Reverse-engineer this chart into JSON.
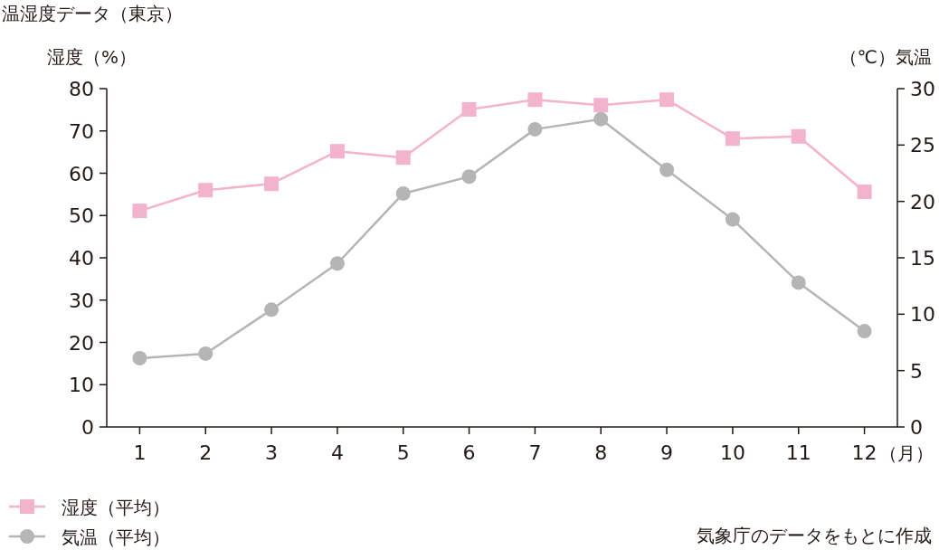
{
  "chart_data": {
    "type": "line",
    "title": "温湿度データ（東京）",
    "ylabel": "湿度（%）",
    "y2label": "（℃）気温",
    "xlabel": "（月）",
    "categories": [
      "1",
      "2",
      "3",
      "4",
      "5",
      "6",
      "7",
      "8",
      "9",
      "10",
      "11",
      "12"
    ],
    "series": [
      {
        "name": "湿度（平均）",
        "color": "#f4b3cc",
        "marker": "square",
        "values": [
          51.1,
          56.0,
          57.5,
          65.2,
          63.7,
          75.1,
          77.4,
          76.1,
          77.4,
          68.2,
          68.7,
          55.6
        ]
      },
      {
        "name": "気温（平均）",
        "color": "#b5b5b5",
        "marker": "circle",
        "axis": "y2",
        "values": [
          6.1,
          6.5,
          10.4,
          14.5,
          20.7,
          22.2,
          26.4,
          27.3,
          22.8,
          18.4,
          12.8,
          8.5
        ]
      }
    ],
    "ylim": [
      0,
      80
    ],
    "yticks": [
      0,
      10,
      20,
      30,
      40,
      50,
      60,
      70,
      80
    ],
    "y2lim": [
      0,
      30
    ],
    "y2ticks": [
      0,
      5,
      10,
      15,
      20,
      25,
      30
    ],
    "grid": false,
    "legend": "bottom left",
    "annotations": [
      "気象庁のデータをもとに作成"
    ]
  }
}
